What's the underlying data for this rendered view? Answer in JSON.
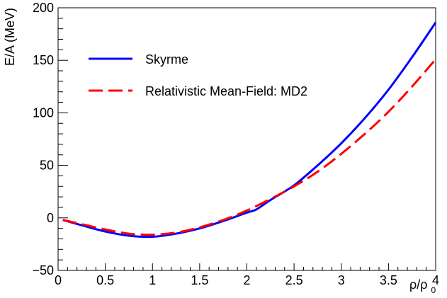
{
  "chart_data": {
    "type": "line",
    "xlabel": "ρ/ρ",
    "xlabel_sub": "0",
    "ylabel": "E/A (MeV)",
    "xlim": [
      0,
      4
    ],
    "ylim": [
      -50,
      200
    ],
    "x_major_ticks": [
      0,
      0.5,
      1,
      1.5,
      2,
      2.5,
      3,
      3.5,
      4
    ],
    "x_tick_labels": [
      "0",
      "0.5",
      "1",
      "1.5",
      "2",
      "2.5",
      "3",
      "3.5",
      "4"
    ],
    "y_major_ticks": [
      -50,
      0,
      50,
      100,
      150,
      200
    ],
    "y_tick_labels": [
      "−50",
      "0",
      "50",
      "100",
      "150",
      "200"
    ],
    "grid": false,
    "legend_position": "top-left",
    "series": [
      {
        "name": "Skyrme",
        "color": "#0000ff",
        "style": "solid",
        "x": [
          0.05,
          0.25,
          0.5,
          0.75,
          1.0,
          1.25,
          1.5,
          1.75,
          2.0,
          2.1,
          2.25,
          2.5,
          2.75,
          3.0,
          3.25,
          3.5,
          3.75,
          4.0
        ],
        "y": [
          -2,
          -7,
          -13,
          -17,
          -18,
          -15,
          -10,
          -3,
          5,
          8,
          17,
          31,
          50,
          71,
          95,
          122,
          153,
          186
        ]
      },
      {
        "name": "Relativistic Mean-Field: MD2",
        "color": "#ff0000",
        "style": "dashed",
        "x": [
          0.05,
          0.25,
          0.5,
          0.75,
          1.0,
          1.25,
          1.5,
          1.75,
          2.0,
          2.25,
          2.5,
          2.75,
          3.0,
          3.25,
          3.5,
          3.75,
          4.0
        ],
        "y": [
          -2,
          -6,
          -11,
          -15,
          -16,
          -14,
          -9,
          -2,
          7,
          18,
          30,
          44,
          61,
          80,
          101,
          125,
          151
        ]
      }
    ]
  }
}
